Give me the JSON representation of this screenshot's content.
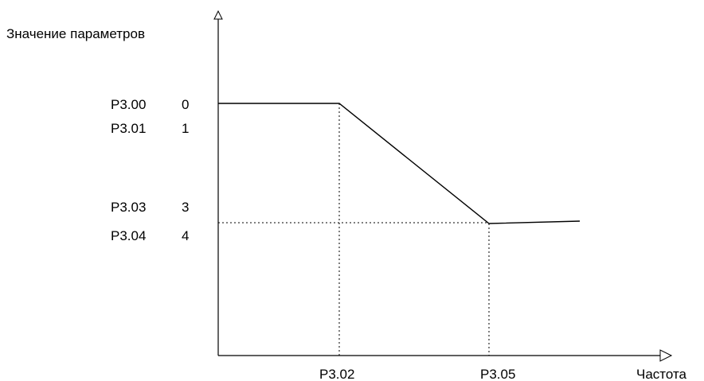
{
  "diagram": {
    "y_axis_title": "Значение параметров",
    "x_axis_title": "Частота",
    "y_labels": [
      {
        "param": "P3.00",
        "value": "0"
      },
      {
        "param": "P3.01",
        "value": "1"
      },
      {
        "param": "P3.03",
        "value": "3"
      },
      {
        "param": "P3.04",
        "value": "4"
      }
    ],
    "x_labels": [
      "P3.02",
      "P3.05"
    ],
    "colors": {
      "line": "#000000",
      "background": "#ffffff"
    }
  }
}
